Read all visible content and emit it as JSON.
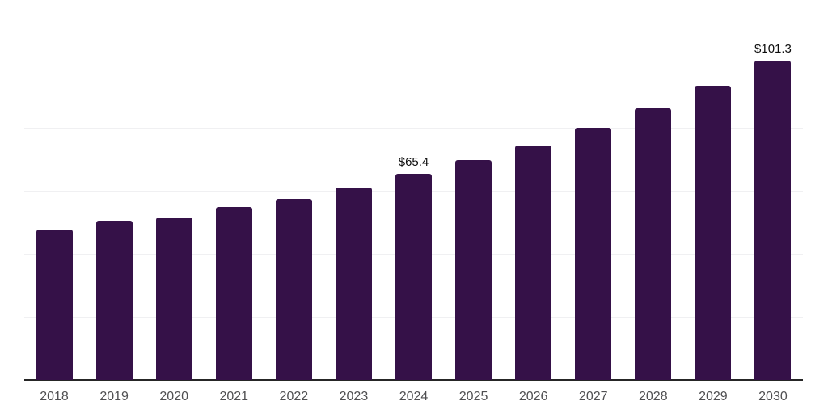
{
  "chart_data": {
    "type": "bar",
    "title": "",
    "xlabel": "",
    "ylabel": "",
    "categories": [
      "2018",
      "2019",
      "2020",
      "2021",
      "2022",
      "2023",
      "2024",
      "2025",
      "2026",
      "2027",
      "2028",
      "2029",
      "2030"
    ],
    "values": [
      47.8,
      50.5,
      51.5,
      54.8,
      57.5,
      61.0,
      65.4,
      69.7,
      74.4,
      79.9,
      86.1,
      93.4,
      101.3
    ],
    "point_labels": {
      "2024": "$65.4",
      "2030": "$101.3"
    },
    "ylim": [
      0,
      120
    ],
    "grid_step": 20,
    "grid": true,
    "legend_position": "none",
    "colors": {
      "bar": "#351148",
      "axis_line": "#262626",
      "gridline": "#f0f0f2",
      "tick_label": "#4f4f51",
      "point_label": "#0d0d0d",
      "background": "#ffffff"
    }
  }
}
